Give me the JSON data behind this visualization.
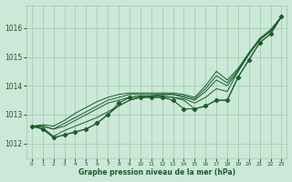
{
  "title": "Graphe pression niveau de la mer (hPa)",
  "bg_color": "#cce8d8",
  "plot_bg_color": "#cce8d8",
  "grid_color": "#99ccaa",
  "line_color": "#1a5c2a",
  "ylim": [
    1011.5,
    1016.8
  ],
  "yticks": [
    1012,
    1013,
    1014,
    1015,
    1016
  ],
  "x_labels": [
    "0",
    "1",
    "2",
    "3",
    "4",
    "5",
    "6",
    "7",
    "8",
    "9",
    "10",
    "11",
    "12",
    "13",
    "14",
    "15",
    "16",
    "17",
    "18",
    "19",
    "20",
    "21",
    "22",
    "23"
  ],
  "series": [
    {
      "data": [
        1012.6,
        1012.5,
        1012.2,
        1012.3,
        1012.4,
        1012.5,
        1012.7,
        1013.0,
        1013.4,
        1013.6,
        1013.6,
        1013.6,
        1013.6,
        1013.5,
        1013.2,
        1013.2,
        1013.3,
        1013.5,
        1013.5,
        1014.3,
        1014.9,
        1015.5,
        1015.8,
        1016.4
      ],
      "markers": true,
      "linewidth": 0.8
    },
    {
      "data": [
        1012.6,
        1012.5,
        1012.2,
        1012.3,
        1012.4,
        1012.5,
        1012.7,
        1013.0,
        1013.3,
        1013.5,
        1013.6,
        1013.6,
        1013.6,
        1013.6,
        1013.5,
        1013.2,
        1013.3,
        1013.5,
        1013.5,
        1014.3,
        1014.9,
        1015.5,
        1015.8,
        1016.4
      ],
      "markers": false,
      "linewidth": 0.7
    },
    {
      "data": [
        1012.6,
        1012.55,
        1012.25,
        1012.45,
        1012.6,
        1012.75,
        1012.9,
        1013.1,
        1013.3,
        1013.5,
        1013.6,
        1013.65,
        1013.65,
        1013.6,
        1013.55,
        1013.4,
        1013.6,
        1013.9,
        1013.8,
        1014.5,
        1015.1,
        1015.6,
        1015.9,
        1016.4
      ],
      "markers": false,
      "linewidth": 0.7
    },
    {
      "data": [
        1012.6,
        1012.6,
        1012.5,
        1012.6,
        1012.8,
        1013.0,
        1013.2,
        1013.4,
        1013.5,
        1013.6,
        1013.65,
        1013.65,
        1013.7,
        1013.7,
        1013.6,
        1013.5,
        1013.8,
        1014.2,
        1014.0,
        1014.5,
        1015.1,
        1015.6,
        1015.9,
        1016.4
      ],
      "markers": false,
      "linewidth": 0.7
    },
    {
      "data": [
        1012.6,
        1012.6,
        1012.5,
        1012.7,
        1012.9,
        1013.1,
        1013.3,
        1013.5,
        1013.6,
        1013.7,
        1013.7,
        1013.7,
        1013.7,
        1013.7,
        1013.65,
        1013.55,
        1013.9,
        1014.35,
        1014.1,
        1014.55,
        1015.1,
        1015.6,
        1015.9,
        1016.4
      ],
      "markers": false,
      "linewidth": 0.7
    },
    {
      "data": [
        1012.6,
        1012.65,
        1012.6,
        1012.8,
        1013.05,
        1013.25,
        1013.45,
        1013.6,
        1013.7,
        1013.75,
        1013.75,
        1013.75,
        1013.75,
        1013.75,
        1013.7,
        1013.6,
        1014.0,
        1014.5,
        1014.2,
        1014.6,
        1015.15,
        1015.65,
        1015.95,
        1016.4
      ],
      "markers": false,
      "linewidth": 0.7
    }
  ],
  "marker_series_idx": 0
}
